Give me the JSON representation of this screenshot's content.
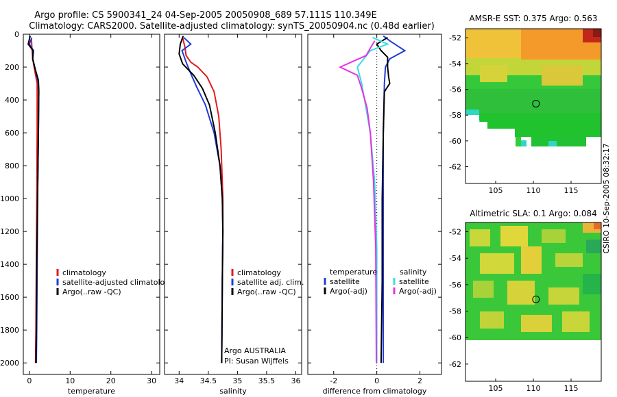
{
  "header": {
    "line1": "Argo profile: CS 5900341_24 04-Sep-2005 20050908_689 57.111S 110.349E",
    "line2": "Climatology: CARS2000. Satellite-adjusted climatology: synTS_20050904.nc (0.48d earlier)"
  },
  "side_label": "CSIRO 10-Sep-2005 08:32:17",
  "colors": {
    "red": "#e41a1c",
    "blue": "#1f3bd8",
    "black": "#000000",
    "cyan": "#33e0e6",
    "magenta": "#e633e0"
  },
  "chart_data": [
    {
      "id": "temperature",
      "type": "line",
      "xlabel": "temperature",
      "xlim": [
        -1.5,
        32
      ],
      "ylim": [
        2070,
        0
      ],
      "xticks": [
        0,
        10,
        20,
        30
      ],
      "xtick_labels": [
        "0",
        "10",
        "20",
        "30"
      ],
      "yticks": [
        0,
        200,
        400,
        600,
        800,
        1000,
        1200,
        1400,
        1600,
        1800,
        2000
      ],
      "ytick_labels": [
        "0",
        "200",
        "400",
        "600",
        "800",
        "1000",
        "1200",
        "1400",
        "1600",
        "1800",
        "2000"
      ],
      "legend": [
        "climatology",
        "satellite-adjusted climatology",
        "Argo(..raw -QC)"
      ],
      "series": [
        {
          "name": "climatology",
          "color": "red",
          "points": [
            [
              0.5,
              30
            ],
            [
              0.6,
              80
            ],
            [
              0.8,
              150
            ],
            [
              1.3,
              220
            ],
            [
              1.9,
              300
            ],
            [
              1.9,
              600
            ],
            [
              1.8,
              1000
            ],
            [
              1.7,
              1400
            ],
            [
              1.6,
              1800
            ],
            [
              1.5,
              2000
            ]
          ]
        },
        {
          "name": "satellite-adjusted climatology",
          "color": "blue",
          "points": [
            [
              0.6,
              20
            ],
            [
              0.0,
              60
            ],
            [
              1.0,
              100
            ],
            [
              0.8,
              150
            ],
            [
              1.5,
              220
            ],
            [
              2.1,
              290
            ],
            [
              2.3,
              350
            ],
            [
              2.2,
              600
            ],
            [
              2.0,
              1000
            ],
            [
              1.9,
              1400
            ],
            [
              1.8,
              1800
            ],
            [
              1.7,
              2000
            ]
          ]
        },
        {
          "name": "Argo(..raw -QC)",
          "color": "black",
          "points": [
            [
              0.2,
              10
            ],
            [
              -0.3,
              60
            ],
            [
              0.9,
              100
            ],
            [
              0.8,
              150
            ],
            [
              1.4,
              210
            ],
            [
              2.2,
              280
            ],
            [
              2.3,
              340
            ],
            [
              2.2,
              600
            ],
            [
              2.0,
              1000
            ],
            [
              1.8,
              1400
            ],
            [
              1.7,
              1800
            ],
            [
              1.6,
              2000
            ]
          ]
        }
      ]
    },
    {
      "id": "salinity",
      "type": "line",
      "xlabel": "salinity",
      "xlim": [
        33.75,
        36.1
      ],
      "ylim": [
        2070,
        0
      ],
      "xticks": [
        34,
        34.5,
        35,
        35.5,
        36
      ],
      "xtick_labels": [
        "34",
        "34.5",
        "35",
        "35.5",
        "36"
      ],
      "legend": [
        "climatology",
        "satellite adj. clim.",
        "Argo(..raw -QC)"
      ],
      "annotation": [
        "Argo AUSTRALIA",
        "PI: Susan Wijffels"
      ],
      "series": [
        {
          "name": "climatology",
          "color": "red",
          "points": [
            [
              34.06,
              20
            ],
            [
              34.1,
              80
            ],
            [
              34.12,
              130
            ],
            [
              34.2,
              170
            ],
            [
              34.32,
              200
            ],
            [
              34.48,
              260
            ],
            [
              34.6,
              350
            ],
            [
              34.68,
              500
            ],
            [
              34.72,
              700
            ],
            [
              34.75,
              1000
            ],
            [
              34.75,
              1200
            ],
            [
              34.74,
              1500
            ],
            [
              34.73,
              2000
            ]
          ]
        },
        {
          "name": "satellite adj. clim.",
          "color": "blue",
          "points": [
            [
              34.08,
              20
            ],
            [
              34.2,
              60
            ],
            [
              34.05,
              100
            ],
            [
              34.12,
              170
            ],
            [
              34.2,
              240
            ],
            [
              34.3,
              320
            ],
            [
              34.45,
              430
            ],
            [
              34.6,
              600
            ],
            [
              34.7,
              800
            ],
            [
              34.74,
              1000
            ],
            [
              34.75,
              1200
            ],
            [
              34.74,
              1500
            ],
            [
              34.73,
              2000
            ]
          ]
        },
        {
          "name": "Argo(..raw -QC)",
          "color": "black",
          "points": [
            [
              34.07,
              10
            ],
            [
              34.02,
              60
            ],
            [
              34.0,
              120
            ],
            [
              34.06,
              180
            ],
            [
              34.25,
              250
            ],
            [
              34.4,
              330
            ],
            [
              34.52,
              430
            ],
            [
              34.62,
              600
            ],
            [
              34.7,
              800
            ],
            [
              34.74,
              1000
            ],
            [
              34.75,
              1200
            ],
            [
              34.74,
              1500
            ],
            [
              34.73,
              2000
            ]
          ]
        }
      ]
    },
    {
      "id": "difference",
      "type": "line",
      "xlabel": "difference from climatology",
      "xlim": [
        -3.2,
        3.0
      ],
      "ylim": [
        2070,
        0
      ],
      "xticks": [
        -2,
        0,
        2
      ],
      "xtick_labels": [
        "-2",
        "0",
        "2"
      ],
      "legend_temperature": {
        "title": "temperature",
        "items": [
          "satellite",
          "Argo(-adj)"
        ]
      },
      "legend_salinity": {
        "title": "salinity",
        "items": [
          "satellite",
          "Argo(-adj)"
        ]
      },
      "series": [
        {
          "name": "temperature satellite",
          "color": "blue",
          "points": [
            [
              0.3,
              10
            ],
            [
              0.6,
              40
            ],
            [
              1.3,
              100
            ],
            [
              0.6,
              150
            ],
            [
              0.4,
              200
            ],
            [
              0.35,
              300
            ],
            [
              0.3,
              600
            ],
            [
              0.3,
              1000
            ],
            [
              0.3,
              1500
            ],
            [
              0.3,
              2000
            ]
          ]
        },
        {
          "name": "temperature Argo(-adj)",
          "color": "black",
          "points": [
            [
              0.5,
              20
            ],
            [
              0.0,
              60
            ],
            [
              0.2,
              100
            ],
            [
              0.5,
              140
            ],
            [
              0.5,
              200
            ],
            [
              0.55,
              260
            ],
            [
              0.6,
              300
            ],
            [
              0.35,
              350
            ],
            [
              0.3,
              600
            ],
            [
              0.25,
              1000
            ],
            [
              0.25,
              1500
            ],
            [
              0.2,
              2000
            ]
          ]
        },
        {
          "name": "salinity satellite",
          "color": "cyan",
          "points": [
            [
              -0.2,
              20
            ],
            [
              0.5,
              60
            ],
            [
              -0.3,
              100
            ],
            [
              -0.9,
              200
            ],
            [
              -0.7,
              300
            ],
            [
              -0.5,
              450
            ],
            [
              -0.3,
              600
            ],
            [
              -0.1,
              900
            ],
            [
              0.0,
              1300
            ],
            [
              0.0,
              2000
            ]
          ]
        },
        {
          "name": "salinity Argo(-adj)",
          "color": "magenta",
          "points": [
            [
              -0.1,
              40
            ],
            [
              -0.5,
              130
            ],
            [
              -1.7,
              200
            ],
            [
              -0.9,
              250
            ],
            [
              -0.7,
              330
            ],
            [
              -0.45,
              450
            ],
            [
              -0.3,
              600
            ],
            [
              -0.15,
              900
            ],
            [
              -0.05,
              1300
            ],
            [
              -0.02,
              2000
            ]
          ]
        }
      ]
    },
    {
      "id": "sst_map",
      "type": "heatmap",
      "title": "AMSR-E SST: 0.375 Argo: 0.563",
      "xlim": [
        101,
        119
      ],
      "ylim": [
        -63.3,
        -51.3
      ],
      "xticks": [
        105,
        110,
        115
      ],
      "xtick_labels": [
        "105",
        "110",
        "115"
      ],
      "yticks": [
        -52,
        -54,
        -56,
        -58,
        -60,
        -62
      ],
      "ytick_labels": [
        "-52",
        "-54",
        "-56",
        "-58",
        "-60",
        "-62"
      ],
      "marker": {
        "lon": 110.349,
        "lat": -57.111
      },
      "data_extent_lat": -61.2
    },
    {
      "id": "sla_map",
      "type": "heatmap",
      "title": "Altimetric SLA: 0.1 Argo: 0.084",
      "xlim": [
        101,
        119
      ],
      "ylim": [
        -63.3,
        -51.3
      ],
      "xticks": [
        105,
        110,
        115
      ],
      "xtick_labels": [
        "105",
        "110",
        "115"
      ],
      "yticks": [
        -52,
        -54,
        -56,
        -58,
        -60,
        -62
      ],
      "ytick_labels": [
        "-52",
        "-54",
        "-56",
        "-58",
        "-60",
        "-62"
      ],
      "marker": {
        "lon": 110.349,
        "lat": -57.111
      },
      "data_extent_lat": -60.2
    }
  ]
}
